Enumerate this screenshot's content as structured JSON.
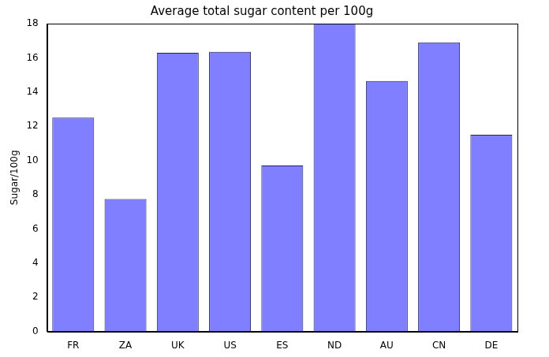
{
  "chart_data": {
    "type": "bar",
    "title": "Average total sugar content per 100g",
    "y_label": "Sugar/100g",
    "categories": [
      "FR",
      "ZA",
      "UK",
      "US",
      "ES",
      "ND",
      "AU",
      "CN",
      "DE"
    ],
    "values": [
      12.5,
      7.75,
      16.3,
      16.35,
      9.7,
      18.0,
      14.65,
      16.9,
      11.5
    ],
    "color": "#7f7fff",
    "ylim": [
      0,
      18
    ],
    "yticks": [
      0,
      2,
      4,
      6,
      8,
      10,
      12,
      14,
      16,
      18
    ],
    "grid": false
  }
}
